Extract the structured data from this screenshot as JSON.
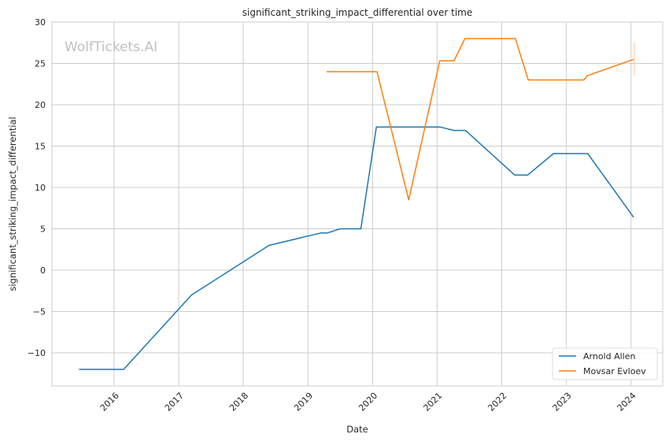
{
  "chart_data": {
    "type": "line",
    "title": "significant_striking_impact_differential over time",
    "xlabel": "Date",
    "ylabel": "significant_striking_impact_differential",
    "watermark": "WolfTickets.AI",
    "xlim": [
      2015.04,
      2024.49
    ],
    "ylim": [
      -14,
      30
    ],
    "xticks": [
      2016,
      2017,
      2018,
      2019,
      2020,
      2021,
      2022,
      2023,
      2024
    ],
    "xtick_labels": [
      "2016",
      "2017",
      "2018",
      "2019",
      "2020",
      "2021",
      "2022",
      "2023",
      "2024"
    ],
    "yticks": [
      -10,
      -5,
      0,
      5,
      10,
      15,
      20,
      25,
      30
    ],
    "ytick_labels": [
      "−10",
      "−5",
      "0",
      "5",
      "10",
      "15",
      "20",
      "25",
      "30"
    ],
    "grid": true,
    "legend_position": "bottom-right",
    "series": [
      {
        "name": "Arnold Allen",
        "color": "#1f77b4",
        "x": [
          2015.46,
          2016.15,
          2017.2,
          2018.4,
          2019.2,
          2019.3,
          2019.5,
          2019.82,
          2020.06,
          2021.05,
          2021.26,
          2021.44,
          2022.2,
          2022.4,
          2022.8,
          2023.33,
          2024.04
        ],
        "y": [
          -12,
          -12,
          -3,
          3,
          4.5,
          4.5,
          5,
          5,
          17.3,
          17.3,
          16.9,
          16.9,
          11.5,
          11.5,
          14.1,
          14.1,
          6.4
        ]
      },
      {
        "name": "Movsar Evloev",
        "color": "#ff7f0e",
        "x": [
          2019.29,
          2020.07,
          2020.56,
          2021.04,
          2021.26,
          2021.43,
          2022.21,
          2022.41,
          2023.27,
          2023.32,
          2024.04
        ],
        "y": [
          24,
          24,
          8.5,
          25.3,
          25.3,
          28,
          28,
          23,
          23,
          23.5,
          25.5
        ],
        "band": {
          "x": 2024.05,
          "y": [
            23.5,
            27.5
          ]
        }
      }
    ]
  }
}
